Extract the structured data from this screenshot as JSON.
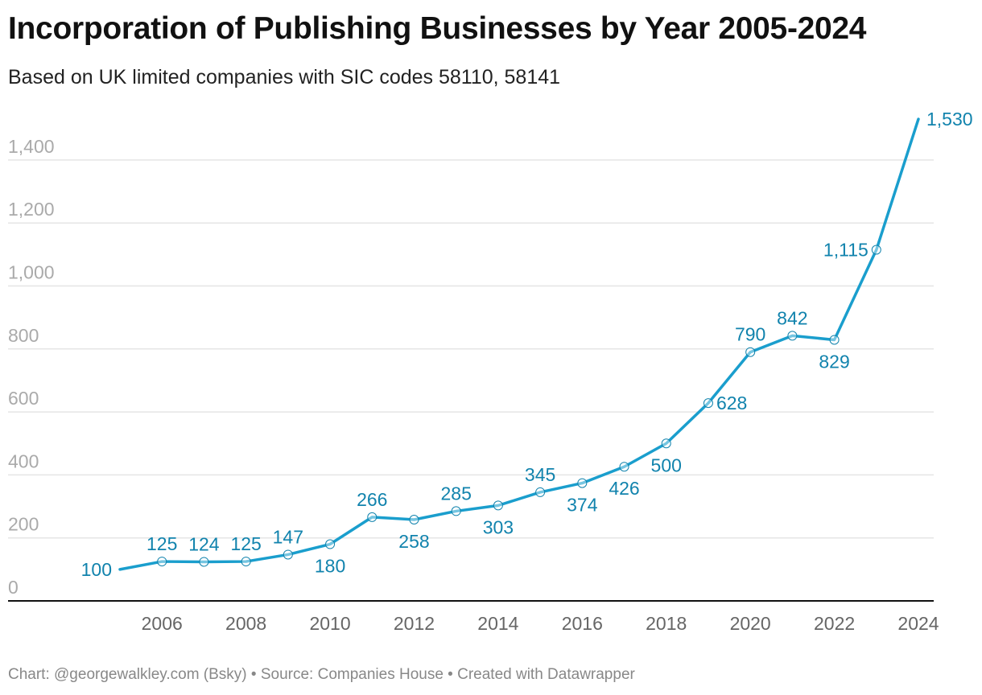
{
  "title": "Incorporation of Publishing Businesses by Year 2005-2024",
  "subtitle": "Based on UK limited companies with SIC codes 58110, 58141",
  "footer": "Chart: @georgewalkley.com (Bsky) • Source: Companies House • Created with Datawrapper",
  "colors": {
    "line": "#1a9ecd",
    "label": "#1183ad",
    "grid": "#e5e5e5",
    "axis": "#111111"
  },
  "chart_data": {
    "type": "line",
    "title": "Incorporation of Publishing Businesses by Year 2005-2024",
    "subtitle": "Based on UK limited companies with SIC codes 58110, 58141",
    "x": [
      2005,
      2006,
      2007,
      2008,
      2009,
      2010,
      2011,
      2012,
      2013,
      2014,
      2015,
      2016,
      2017,
      2018,
      2019,
      2020,
      2021,
      2022,
      2023,
      2024
    ],
    "values": [
      100,
      125,
      124,
      125,
      147,
      180,
      266,
      258,
      285,
      303,
      345,
      374,
      426,
      500,
      628,
      790,
      842,
      829,
      1115,
      1530
    ],
    "data_labels": [
      "100",
      "125",
      "124",
      "125",
      "147",
      "180",
      "266",
      "258",
      "285",
      "303",
      "345",
      "374",
      "426",
      "500",
      "628",
      "790",
      "842",
      "829",
      "1,115",
      "1,530"
    ],
    "label_positions": [
      "left",
      "above",
      "above",
      "above",
      "above",
      "below",
      "above",
      "below",
      "above",
      "below",
      "above",
      "below",
      "below",
      "below",
      "right",
      "above",
      "above",
      "below",
      "left",
      "right"
    ],
    "xticks": [
      "2006",
      "2008",
      "2010",
      "2012",
      "2014",
      "2016",
      "2018",
      "2020",
      "2022",
      "2024"
    ],
    "xtick_values": [
      2006,
      2008,
      2010,
      2012,
      2014,
      2016,
      2018,
      2020,
      2022,
      2024
    ],
    "yticks": [
      "0",
      "200",
      "400",
      "600",
      "800",
      "1,000",
      "1,200",
      "1,400"
    ],
    "ytick_values": [
      0,
      200,
      400,
      600,
      800,
      1000,
      1200,
      1400
    ],
    "xlim": [
      2005,
      2024
    ],
    "ylim": [
      0,
      1530
    ],
    "grid": true,
    "legend": "none"
  }
}
